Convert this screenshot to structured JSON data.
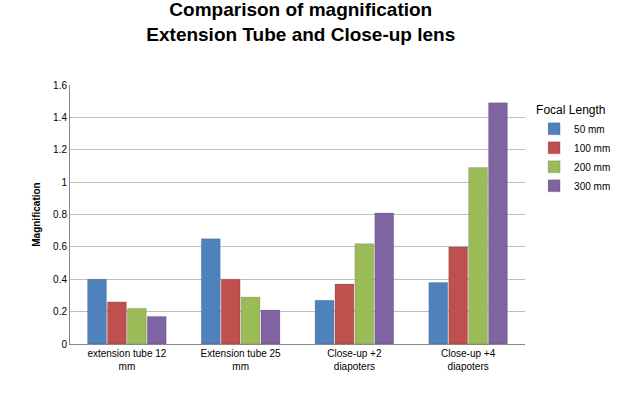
{
  "chart_data": {
    "type": "bar",
    "title": "Comparison of magnification\nExtension Tube and Close-up lens",
    "y_label": "Magnification",
    "legend_title": "Focal Length",
    "categories": [
      "extension tube 12 mm",
      "Extension tube 25 mm",
      "Close-up +2 diapoters",
      "Close-up +4 diapoters"
    ],
    "series": [
      {
        "name": "50 mm",
        "color": "#4f81bd",
        "values": [
          0.4,
          0.65,
          0.27,
          0.38
        ]
      },
      {
        "name": "100 mm",
        "color": "#c0504d",
        "values": [
          0.26,
          0.4,
          0.37,
          0.6
        ]
      },
      {
        "name": "200 mm",
        "color": "#9bbb59",
        "values": [
          0.22,
          0.29,
          0.62,
          1.09
        ]
      },
      {
        "name": "300 mm",
        "color": "#8064a2",
        "values": [
          0.17,
          0.21,
          0.81,
          1.49
        ]
      }
    ],
    "ylim": [
      0,
      1.6
    ],
    "yticks": [
      0,
      0.2,
      0.4,
      0.6,
      0.8,
      1,
      1.2,
      1.4,
      1.6
    ],
    "grid": true,
    "legend": "right"
  }
}
